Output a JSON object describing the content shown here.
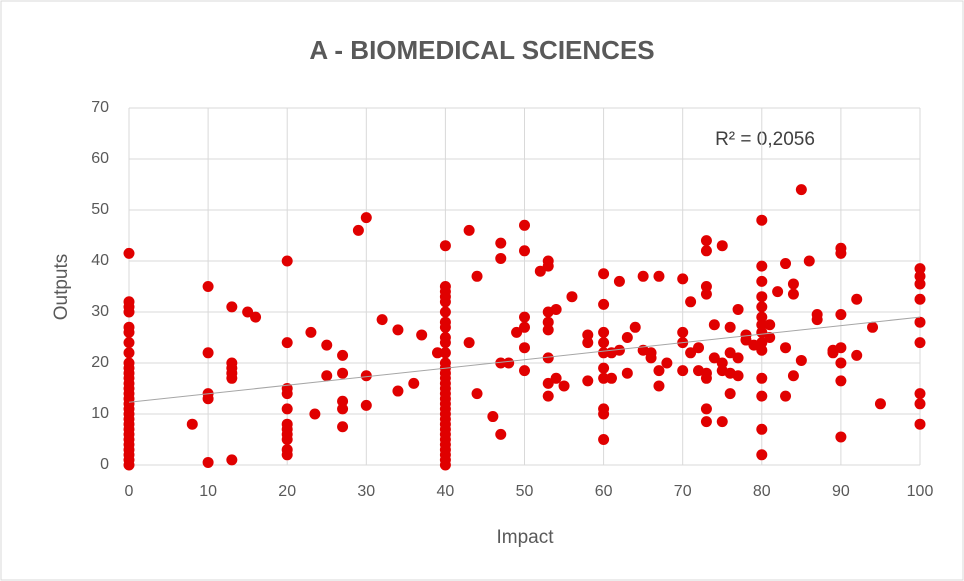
{
  "chart_data": {
    "type": "scatter",
    "title": "A - BIOMEDICAL SCIENCES",
    "xlabel": "Impact",
    "ylabel": "Outputs",
    "annotation": "R² = 0,2056",
    "xlim": [
      0,
      100
    ],
    "xticks": [
      0,
      10,
      20,
      30,
      40,
      50,
      60,
      70,
      80,
      90,
      100
    ],
    "ylim": [
      0,
      70
    ],
    "yticks": [
      0,
      10,
      20,
      30,
      40,
      50,
      60,
      70
    ],
    "grid": true,
    "trendline": {
      "color": "#a6a6a6",
      "x": [
        0,
        100
      ],
      "y": [
        12.3,
        29
      ]
    },
    "series": [
      {
        "color": "#e00000",
        "x": [
          0,
          0,
          0,
          0,
          0,
          0,
          0,
          0,
          0,
          0,
          0,
          0,
          0,
          0,
          0,
          0,
          0,
          0,
          0,
          0,
          0,
          0,
          0,
          0,
          0,
          0,
          0,
          0,
          0,
          8,
          10,
          10,
          10,
          10,
          10,
          13,
          13,
          13,
          13,
          13,
          13,
          15,
          16,
          20,
          20,
          20,
          20,
          20,
          20,
          20,
          20,
          20,
          20,
          20,
          23,
          23.5,
          25,
          25,
          27,
          27,
          27,
          27,
          27,
          29,
          30,
          30,
          30,
          32,
          34,
          34,
          36,
          37,
          39,
          40,
          40,
          40,
          40,
          40,
          40,
          40,
          40,
          40,
          40,
          40,
          40,
          40,
          40,
          40,
          40,
          40,
          40,
          40,
          40,
          40,
          40,
          40,
          40,
          40,
          40,
          40,
          40,
          40,
          40,
          40,
          40,
          43,
          43,
          44,
          44,
          46,
          47,
          47,
          47,
          47,
          48,
          49,
          50,
          50,
          50,
          50,
          50,
          50,
          52,
          53,
          53,
          53,
          53,
          53,
          53,
          53,
          53,
          54,
          54,
          55,
          56,
          58,
          58,
          58,
          60,
          60,
          60,
          60,
          60,
          60,
          60,
          60,
          60,
          60,
          61,
          61,
          62,
          62,
          63,
          63,
          64,
          65,
          65,
          66,
          66,
          67,
          67,
          67,
          68,
          70,
          70,
          70,
          70,
          71,
          71,
          72,
          72,
          73,
          73,
          73,
          73,
          73,
          73,
          73,
          73,
          74,
          74,
          75,
          75,
          75,
          75,
          76,
          76,
          76,
          76,
          77,
          77,
          77,
          78,
          78,
          79,
          80,
          80,
          80,
          80,
          80,
          80,
          80,
          80,
          80,
          80,
          80,
          80,
          80,
          80,
          81,
          81,
          82,
          83,
          83,
          83,
          84,
          84,
          84,
          85,
          85,
          86,
          87,
          87,
          89,
          89,
          90,
          90,
          90,
          90,
          90,
          90,
          90,
          92,
          92,
          94,
          95,
          100,
          100,
          100,
          100,
          100,
          100,
          100,
          100,
          100
        ],
        "values": [
          0,
          1,
          2,
          3,
          4,
          5,
          6,
          7,
          8,
          9,
          10,
          11,
          12,
          13,
          14,
          15,
          16,
          17,
          18,
          19,
          20,
          22,
          24,
          26,
          27,
          30,
          31,
          32,
          41.5,
          8,
          0.5,
          13,
          14,
          22,
          35,
          1,
          17,
          18,
          19,
          20,
          31,
          30,
          29,
          2,
          3,
          5,
          6,
          7,
          8,
          11,
          14,
          15,
          24,
          40,
          26,
          10,
          17.5,
          23.5,
          7.5,
          11,
          12.5,
          18,
          21.5,
          46,
          48.5,
          17.5,
          11.7,
          28.5,
          14.5,
          26.5,
          16,
          25.5,
          22,
          0,
          1,
          2,
          3,
          4,
          5,
          6,
          7,
          8,
          9,
          10,
          11,
          12,
          13,
          14,
          15,
          16,
          17,
          18,
          19,
          20,
          22,
          24,
          25,
          27,
          28,
          30,
          32,
          33,
          34,
          35,
          43,
          24,
          46,
          37,
          14,
          9.5,
          40.5,
          43.5,
          20,
          6,
          20,
          26,
          47,
          42,
          29,
          27,
          23,
          18.5,
          38,
          40,
          39,
          30,
          28,
          26.5,
          21,
          16,
          13.5,
          17,
          30.5,
          15.5,
          33,
          16.5,
          25.5,
          24,
          37.5,
          31.5,
          26,
          24,
          22,
          19,
          17,
          11,
          10,
          5,
          22,
          17,
          36,
          22.5,
          25,
          18,
          27,
          22.5,
          37,
          21,
          22,
          15.5,
          18.5,
          37,
          20,
          36.5,
          26,
          24,
          18.5,
          32,
          22,
          18.5,
          23,
          44,
          42,
          35,
          33.5,
          18,
          17,
          11,
          8.5,
          27.5,
          21,
          43,
          20,
          18.5,
          8.5,
          27,
          22,
          14,
          18,
          30.5,
          21,
          17.5,
          25.5,
          24.5,
          23.5,
          48,
          39,
          36,
          33,
          31,
          29,
          27.5,
          26,
          24,
          22.5,
          17,
          13.5,
          7,
          2,
          27.5,
          25,
          34,
          39.5,
          13.5,
          23,
          35.5,
          33.5,
          17.5,
          20.5,
          54,
          40,
          29.5,
          28.5,
          22.5,
          22,
          42.5,
          41.5,
          29.5,
          23,
          20,
          16.5,
          5.5,
          32.5,
          21.5,
          27,
          12,
          38.5,
          37,
          35.5,
          32.5,
          28,
          24,
          14,
          12,
          8
        ]
      }
    ]
  }
}
